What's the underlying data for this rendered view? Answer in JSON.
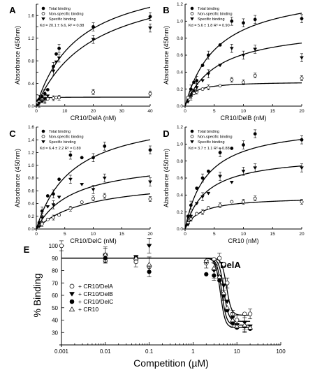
{
  "chart_data": [
    {
      "type": "scatter",
      "panel": "A",
      "xlabel": "CR10/DelA (nM)",
      "ylabel": "Absorbance (450nm)",
      "xlim": [
        0,
        40
      ],
      "ylim": [
        0,
        1.8
      ],
      "xticks": [
        0,
        10,
        20,
        30,
        40
      ],
      "yticks": [
        0.0,
        0.2,
        0.4,
        0.6,
        0.8,
        1.0,
        1.2,
        1.4,
        1.6,
        1.8
      ],
      "ytick_labels": [
        "0.0",
        "",
        "0.4",
        "",
        "0.8",
        "",
        "1.2",
        "",
        "1.6",
        ""
      ],
      "annotation": "Kd = 20.1 ± 6.6, R² = 0.88",
      "legend": {
        "position": "top-left",
        "entries": [
          "Total binding",
          "Non-specific binding",
          "Specific binding"
        ]
      },
      "fits": {
        "total": {
          "bmax": 2.4,
          "kd": 15
        },
        "nonspecific": {
          "bmax": 0.16,
          "kd": 0.25
        },
        "specific": {
          "bmax": 2.33,
          "kd": 20.1
        }
      },
      "series": [
        {
          "name": "Total binding",
          "marker": "filled-circle",
          "points": [
            [
              0.5,
              0.09
            ],
            [
              1,
              0.12
            ],
            [
              2,
              0.17
            ],
            [
              3,
              0.22
            ],
            [
              4,
              0.29
            ],
            [
              6,
              0.7
            ],
            [
              7,
              0.92
            ],
            [
              8,
              1.02
            ],
            [
              20,
              1.4
            ],
            [
              40,
              1.58
            ]
          ]
        },
        {
          "name": "Non-specific binding",
          "marker": "open-circle",
          "points": [
            [
              0.5,
              0.06
            ],
            [
              1,
              0.08
            ],
            [
              2,
              0.09
            ],
            [
              3,
              0.11
            ],
            [
              4,
              0.13
            ],
            [
              6,
              0.14
            ],
            [
              7,
              0.15
            ],
            [
              8,
              0.15
            ],
            [
              20,
              0.25
            ],
            [
              40,
              0.22
            ]
          ]
        },
        {
          "name": "Specific binding",
          "marker": "filled-triangle-down",
          "points": [
            [
              0.5,
              0.02
            ],
            [
              1,
              0.05
            ],
            [
              2,
              0.08
            ],
            [
              3,
              0.12
            ],
            [
              4,
              0.18
            ],
            [
              6,
              0.62
            ],
            [
              7,
              0.78
            ],
            [
              8,
              0.85
            ],
            [
              20,
              1.18
            ],
            [
              40,
              1.38
            ]
          ]
        }
      ]
    },
    {
      "type": "scatter",
      "panel": "B",
      "xlabel": "CR10/DelB (nM)",
      "ylabel": "Absorbance (450nm)",
      "xlim": [
        0,
        20
      ],
      "ylim": [
        0,
        1.2
      ],
      "xticks": [
        0,
        5,
        10,
        15,
        20
      ],
      "yticks": [
        0.0,
        0.2,
        0.4,
        0.6,
        0.8,
        1.0,
        1.2
      ],
      "ytick_labels": [
        "0.0",
        "0.2",
        "0.4",
        "0.6",
        "0.8",
        "1.0",
        "1.2"
      ],
      "annotation": "Kd = 5.6 ± 1.8  R² = 0.90",
      "legend": {
        "position": "top-left",
        "entries": [
          "Total binding",
          "Non-specific binding",
          "Specific binding"
        ]
      },
      "fits": {
        "total": {
          "bmax": 1.4,
          "kd": 5.6
        },
        "nonspecific": {
          "bmax": 0.29,
          "kd": 1.2
        },
        "specific": {
          "bmax": 0.95,
          "kd": 5.6
        }
      },
      "series": [
        {
          "name": "Total binding",
          "marker": "filled-circle",
          "points": [
            [
              0.5,
              0.1
            ],
            [
              1,
              0.2
            ],
            [
              1.5,
              0.28
            ],
            [
              2,
              0.3
            ],
            [
              3,
              0.48
            ],
            [
              4,
              0.6
            ],
            [
              6,
              0.72
            ],
            [
              8,
              1.0
            ],
            [
              10,
              0.98
            ],
            [
              12,
              1.02
            ],
            [
              20,
              1.03
            ]
          ]
        },
        {
          "name": "Non-specific binding",
          "marker": "open-circle",
          "points": [
            [
              0.5,
              0.1
            ],
            [
              1,
              0.12
            ],
            [
              1.5,
              0.15
            ],
            [
              2,
              0.17
            ],
            [
              3,
              0.2
            ],
            [
              4,
              0.22
            ],
            [
              6,
              0.24
            ],
            [
              8,
              0.31
            ],
            [
              10,
              0.28
            ],
            [
              12,
              0.36
            ],
            [
              20,
              0.33
            ]
          ]
        },
        {
          "name": "Specific binding",
          "marker": "filled-triangle-down",
          "points": [
            [
              0.5,
              0.05
            ],
            [
              1,
              0.12
            ],
            [
              1.5,
              0.18
            ],
            [
              2,
              0.22
            ],
            [
              3,
              0.3
            ],
            [
              4,
              0.38
            ],
            [
              6,
              0.48
            ],
            [
              8,
              0.68
            ],
            [
              10,
              0.6
            ],
            [
              12,
              0.67
            ],
            [
              20,
              0.57
            ]
          ]
        }
      ]
    },
    {
      "type": "scatter",
      "panel": "C",
      "xlabel": "CR10/DelC (nM)",
      "ylabel": "Absorbance (450nm)",
      "xlim": [
        0,
        20
      ],
      "ylim": [
        0,
        1.6
      ],
      "xticks": [
        0,
        5,
        10,
        15,
        20
      ],
      "yticks": [
        0.0,
        0.2,
        0.4,
        0.6,
        0.8,
        1.0,
        1.2,
        1.4,
        1.6
      ],
      "ytick_labels": [
        "0.0",
        "0.2",
        "0.4",
        "0.6",
        "0.8",
        "1.0",
        "1.2",
        "1.4",
        "1.6"
      ],
      "annotation": "Kd = 6.4 ± 2.2  R² = 0.89",
      "legend": {
        "position": "top-left",
        "entries": [
          "Total binding",
          "Non-specific binding",
          "Specific binding"
        ]
      },
      "fits": {
        "total": {
          "bmax": 1.85,
          "kd": 6.4
        },
        "nonspecific": {
          "bmax": 0.8,
          "kd": 9
        },
        "specific": {
          "bmax": 1.1,
          "kd": 6.4
        }
      },
      "series": [
        {
          "name": "Total binding",
          "marker": "filled-circle",
          "points": [
            [
              0.5,
              0.1
            ],
            [
              1,
              0.28
            ],
            [
              2,
              0.52
            ],
            [
              3,
              0.55
            ],
            [
              4,
              0.78
            ],
            [
              6,
              1.16
            ],
            [
              8,
              1.12
            ],
            [
              10,
              1.12
            ],
            [
              12,
              1.3
            ],
            [
              20,
              1.24
            ]
          ]
        },
        {
          "name": "Non-specific binding",
          "marker": "open-circle",
          "points": [
            [
              0.5,
              0.05
            ],
            [
              1,
              0.08
            ],
            [
              2,
              0.15
            ],
            [
              3,
              0.18
            ],
            [
              4,
              0.22
            ],
            [
              6,
              0.32
            ],
            [
              8,
              0.42
            ],
            [
              10,
              0.48
            ],
            [
              12,
              0.52
            ],
            [
              20,
              0.47
            ]
          ]
        },
        {
          "name": "Specific binding",
          "marker": "filled-triangle-down",
          "points": [
            [
              0.5,
              0.04
            ],
            [
              1,
              0.18
            ],
            [
              2,
              0.35
            ],
            [
              3,
              0.38
            ],
            [
              4,
              0.5
            ],
            [
              6,
              0.78
            ],
            [
              8,
              0.7
            ],
            [
              10,
              0.62
            ],
            [
              12,
              0.8
            ],
            [
              20,
              0.74
            ]
          ]
        }
      ]
    },
    {
      "type": "scatter",
      "panel": "D",
      "xlabel": "CR10 (nM)",
      "ylabel": "Absorbance (450nm)",
      "xlim": [
        0,
        20
      ],
      "ylim": [
        0,
        1.2
      ],
      "xticks": [
        0,
        5,
        10,
        15,
        20
      ],
      "yticks": [
        0.0,
        0.2,
        0.4,
        0.6,
        0.8,
        1.0,
        1.2
      ],
      "ytick_labels": [
        "0.0",
        "0.2",
        "0.4",
        "0.6",
        "0.8",
        "1.0",
        "1.2"
      ],
      "annotation": "Kd = 3.7 ± 1.1  R² = 0.88",
      "legend": {
        "position": "top-left",
        "entries": [
          "Total binding",
          "Non-specific binding",
          "Specific binding"
        ]
      },
      "fits": {
        "total": {
          "bmax": 1.25,
          "kd": 3.7
        },
        "nonspecific": {
          "bmax": 0.38,
          "kd": 2.5
        },
        "specific": {
          "bmax": 0.88,
          "kd": 3.7
        }
      },
      "series": [
        {
          "name": "Total binding",
          "marker": "filled-circle",
          "points": [
            [
              0.5,
              0.15
            ],
            [
              1,
              0.28
            ],
            [
              2,
              0.48
            ],
            [
              3,
              0.6
            ],
            [
              4,
              0.68
            ],
            [
              6,
              0.9
            ],
            [
              8,
              0.95
            ],
            [
              10,
              0.99
            ],
            [
              12,
              1.12
            ],
            [
              20,
              1.05
            ]
          ]
        },
        {
          "name": "Non-specific binding",
          "marker": "open-circle",
          "points": [
            [
              0.5,
              0.07
            ],
            [
              1,
              0.12
            ],
            [
              2,
              0.18
            ],
            [
              3,
              0.2
            ],
            [
              4,
              0.25
            ],
            [
              6,
              0.28
            ],
            [
              8,
              0.32
            ],
            [
              10,
              0.32
            ],
            [
              12,
              0.36
            ],
            [
              20,
              0.32
            ]
          ]
        },
        {
          "name": "Specific binding",
          "marker": "filled-triangle-down",
          "points": [
            [
              0.5,
              0.05
            ],
            [
              1,
              0.15
            ],
            [
              2,
              0.3
            ],
            [
              3,
              0.38
            ],
            [
              4,
              0.42
            ],
            [
              6,
              0.62
            ],
            [
              8,
              0.55
            ],
            [
              10,
              0.68
            ],
            [
              12,
              0.72
            ],
            [
              20,
              0.72
            ]
          ]
        }
      ]
    },
    {
      "type": "scatter",
      "panel": "E",
      "xlabel": "Competition (µM)",
      "ylabel": "% Binding",
      "xscale": "log",
      "xlim": [
        0.001,
        100
      ],
      "ylim": [
        20,
        100
      ],
      "xticks": [
        0.001,
        0.01,
        0.1,
        1,
        10,
        100
      ],
      "xtick_labels": [
        "0.001",
        "0.01",
        "0.1",
        "1",
        "10",
        "100"
      ],
      "yticks": [
        20,
        30,
        40,
        50,
        60,
        70,
        80,
        90,
        100
      ],
      "ytick_labels": [
        "",
        "30",
        "40",
        "50",
        "60",
        "70",
        "80",
        "90",
        "100"
      ],
      "curve_label": "DelA",
      "legend": {
        "position": "middle-left",
        "entries": [
          "+ CR10/DelA",
          "+ CR10/DelB",
          "+ CR10/DelC",
          "+ CR10"
        ]
      },
      "fits": [
        {
          "top": 90,
          "bottom": 44,
          "ec50": 5.8,
          "hill": 8
        },
        {
          "top": 90,
          "bottom": 39,
          "ec50": 5.0,
          "hill": 8
        },
        {
          "top": 90,
          "bottom": 36,
          "ec50": 4.5,
          "hill": 8
        },
        {
          "top": 90,
          "bottom": 34,
          "ec50": 4.2,
          "hill": 8
        }
      ],
      "series": [
        {
          "name": "+ CR10/DelA",
          "marker": "open-circle",
          "points": [
            [
              0.001,
              100
            ],
            [
              0.01,
              88
            ],
            [
              0.05,
              87
            ],
            [
              0.1,
              83
            ],
            [
              2,
              86
            ],
            [
              3,
              89
            ],
            [
              4,
              90
            ],
            [
              5,
              85
            ],
            [
              6,
              70
            ],
            [
              8,
              45
            ],
            [
              10,
              40
            ],
            [
              15,
              45
            ],
            [
              20,
              45
            ]
          ]
        },
        {
          "name": "+ CR10/DelB",
          "marker": "filled-triangle-down",
          "points": [
            [
              0.01,
              92
            ],
            [
              0.05,
              91
            ],
            [
              0.1,
              100
            ],
            [
              2,
              87
            ],
            [
              3,
              80
            ],
            [
              4,
              75
            ],
            [
              5,
              68
            ],
            [
              6,
              55
            ],
            [
              8,
              42
            ],
            [
              10,
              36
            ],
            [
              15,
              38
            ],
            [
              20,
              35
            ]
          ]
        },
        {
          "name": "+ CR10/DelC",
          "marker": "filled-circle",
          "points": [
            [
              0.01,
              90
            ],
            [
              0.05,
              90
            ],
            [
              0.1,
              79
            ],
            [
              2,
              77
            ],
            [
              3,
              76
            ],
            [
              4,
              72
            ],
            [
              5,
              60
            ],
            [
              6,
              48
            ],
            [
              8,
              38
            ],
            [
              10,
              34
            ],
            [
              15,
              35
            ],
            [
              20,
              33
            ]
          ]
        },
        {
          "name": "+ CR10",
          "marker": "open-triangle-up",
          "points": [
            [
              0.01,
              93
            ],
            [
              0.05,
              90
            ],
            [
              0.1,
              85
            ],
            [
              2,
              88
            ],
            [
              3,
              82
            ],
            [
              4,
              75
            ],
            [
              5,
              62
            ],
            [
              6,
              50
            ],
            [
              8,
              40
            ],
            [
              10,
              35
            ],
            [
              15,
              36
            ],
            [
              20,
              34
            ]
          ]
        }
      ]
    }
  ]
}
